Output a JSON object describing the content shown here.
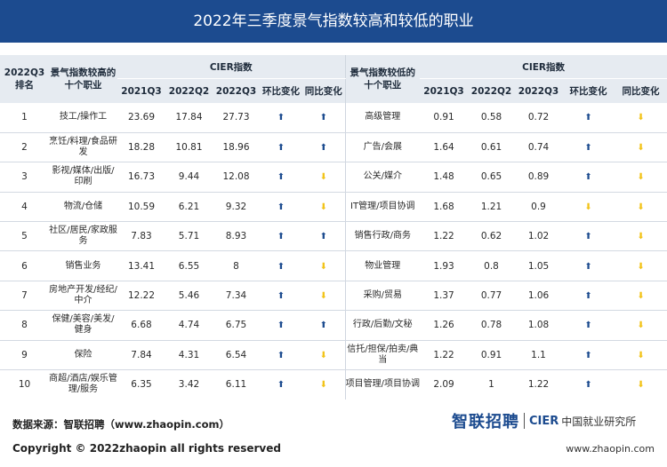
{
  "title": "2022年三季度景气指数较高和较低的职业",
  "header": {
    "rank": "2022Q3\n排名",
    "high_col": "景气指数较高的\n十个职业",
    "low_col": "景气指数较低的\n十个职业",
    "cier": "CIER指数",
    "q1": "2021Q3",
    "q2": "2022Q2",
    "q3": "2022Q3",
    "qoq": "环比变化",
    "yoy": "同比变化"
  },
  "colors": {
    "header_bg": "#1c4b8f",
    "up_arrow": "#1c4b8f",
    "down_arrow": "#f2c318"
  },
  "chart_data": {
    "type": "table",
    "title": "2022年三季度景气指数较高和较低的职业",
    "columns": [
      "2022Q3排名",
      "景气指数较高的十个职业",
      "2021Q3",
      "2022Q2",
      "2022Q3",
      "环比变化",
      "同比变化",
      "景气指数较低的十个职业",
      "2021Q3",
      "2022Q2",
      "2022Q3",
      "环比变化",
      "同比变化"
    ],
    "rows": [
      {
        "rank": "1",
        "high": "技工/操作工",
        "h1": "23.69",
        "h2": "17.84",
        "h3": "27.73",
        "hq": "up",
        "hy": "up",
        "low": "高级管理",
        "l1": "0.91",
        "l2": "0.58",
        "l3": "0.72",
        "lq": "up",
        "ly": "down"
      },
      {
        "rank": "2",
        "high": "烹饪/料理/食品研发",
        "h1": "18.28",
        "h2": "10.81",
        "h3": "18.96",
        "hq": "up",
        "hy": "up",
        "low": "广告/会展",
        "l1": "1.64",
        "l2": "0.61",
        "l3": "0.74",
        "lq": "up",
        "ly": "down"
      },
      {
        "rank": "3",
        "high": "影视/媒体/出版/印刷",
        "h1": "16.73",
        "h2": "9.44",
        "h3": "12.08",
        "hq": "up",
        "hy": "down",
        "low": "公关/媒介",
        "l1": "1.48",
        "l2": "0.65",
        "l3": "0.89",
        "lq": "up",
        "ly": "down"
      },
      {
        "rank": "4",
        "high": "物流/仓储",
        "h1": "10.59",
        "h2": "6.21",
        "h3": "9.32",
        "hq": "up",
        "hy": "down",
        "low": "IT管理/项目协调",
        "l1": "1.68",
        "l2": "1.21",
        "l3": "0.9",
        "lq": "down",
        "ly": "down"
      },
      {
        "rank": "5",
        "high": "社区/居民/家政服务",
        "h1": "7.83",
        "h2": "5.71",
        "h3": "8.93",
        "hq": "up",
        "hy": "up",
        "low": "销售行政/商务",
        "l1": "1.22",
        "l2": "0.62",
        "l3": "1.02",
        "lq": "up",
        "ly": "down"
      },
      {
        "rank": "6",
        "high": "销售业务",
        "h1": "13.41",
        "h2": "6.55",
        "h3": "8",
        "hq": "up",
        "hy": "down",
        "low": "物业管理",
        "l1": "1.93",
        "l2": "0.8",
        "l3": "1.05",
        "lq": "up",
        "ly": "down"
      },
      {
        "rank": "7",
        "high": "房地产开发/经纪/中介",
        "h1": "12.22",
        "h2": "5.46",
        "h3": "7.34",
        "hq": "up",
        "hy": "down",
        "low": "采购/贸易",
        "l1": "1.37",
        "l2": "0.77",
        "l3": "1.06",
        "lq": "up",
        "ly": "down"
      },
      {
        "rank": "8",
        "high": "保健/美容/美发/健身",
        "h1": "6.68",
        "h2": "4.74",
        "h3": "6.75",
        "hq": "up",
        "hy": "up",
        "low": "行政/后勤/文秘",
        "l1": "1.26",
        "l2": "0.78",
        "l3": "1.08",
        "lq": "up",
        "ly": "down"
      },
      {
        "rank": "9",
        "high": "保险",
        "h1": "7.84",
        "h2": "4.31",
        "h3": "6.54",
        "hq": "up",
        "hy": "down",
        "low": "信托/担保/拍卖/典当",
        "l1": "1.22",
        "l2": "0.91",
        "l3": "1.1",
        "lq": "up",
        "ly": "down"
      },
      {
        "rank": "10",
        "high": "商超/酒店/娱乐管理/服务",
        "h1": "6.35",
        "h2": "3.42",
        "h3": "6.11",
        "hq": "up",
        "hy": "down",
        "low": "项目管理/项目协调",
        "l1": "2.09",
        "l2": "1",
        "l3": "1.22",
        "lq": "up",
        "ly": "down"
      }
    ]
  },
  "footer": {
    "source": "数据来源：智联招聘（www.zhaopin.com）",
    "brand_zp": "智联招聘",
    "brand_cier": "CIER",
    "brand_cn": "中国就业研究所",
    "copyright": "Copyright ©  2022zhaopin all rights reserved",
    "site": "www.zhaopin.com"
  }
}
